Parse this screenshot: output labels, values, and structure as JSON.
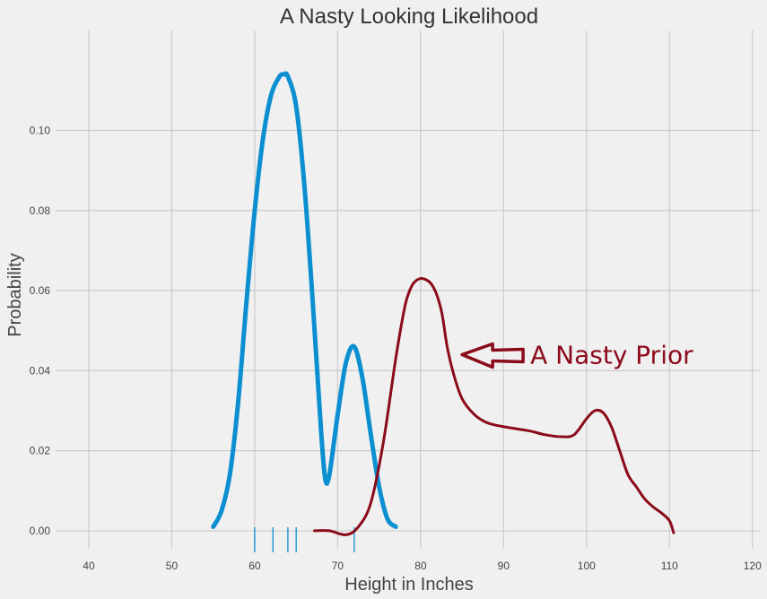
{
  "chart_data": {
    "type": "line",
    "title": "A Nasty Looking Likelihood",
    "xlabel": "Height in Inches",
    "ylabel": "Probability",
    "xlim": [
      36,
      121
    ],
    "ylim": [
      -0.0045,
      0.125
    ],
    "x_ticks": [
      40,
      50,
      60,
      70,
      80,
      90,
      100,
      110,
      120
    ],
    "y_ticks": [
      0.0,
      0.02,
      0.04,
      0.06,
      0.08,
      0.1
    ],
    "x_tick_labels": [
      "40",
      "50",
      "60",
      "70",
      "80",
      "90",
      "100",
      "110",
      "120"
    ],
    "y_tick_labels": [
      "0.00",
      "0.02",
      "0.04",
      "0.06",
      "0.08",
      "0.10"
    ],
    "grid": true,
    "colors": {
      "likelihood": "#0b8fd0",
      "prior": "#8b0a1a",
      "grid": "#cbcbcb",
      "background": "#f0f0f0"
    },
    "series": [
      {
        "x": [
          55,
          56,
          57,
          58,
          59,
          60,
          61,
          62,
          63,
          63.5,
          64,
          65,
          66,
          67,
          68,
          68.5,
          69,
          70,
          71,
          72,
          73,
          74,
          75,
          76,
          77
        ],
        "y": [
          0.001,
          0.005,
          0.014,
          0.032,
          0.057,
          0.08,
          0.098,
          0.109,
          0.1135,
          0.114,
          0.1135,
          0.106,
          0.086,
          0.057,
          0.025,
          0.013,
          0.014,
          0.029,
          0.042,
          0.046,
          0.038,
          0.024,
          0.011,
          0.003,
          0.001
        ]
      },
      {
        "x": [
          67.2,
          69,
          71,
          72.5,
          74,
          75.5,
          77,
          78,
          78.5,
          79.2,
          80.3,
          81.5,
          82.5,
          83.2,
          84,
          85,
          86.5,
          88,
          90,
          93,
          95,
          97,
          98.5,
          100,
          101,
          102,
          103,
          104,
          105,
          106,
          107,
          108,
          109,
          110,
          110.5
        ],
        "y": [
          0.0,
          0.0,
          -0.001,
          0.001,
          0.007,
          0.022,
          0.043,
          0.055,
          0.059,
          0.062,
          0.063,
          0.061,
          0.055,
          0.046,
          0.039,
          0.033,
          0.029,
          0.027,
          0.026,
          0.025,
          0.024,
          0.0235,
          0.024,
          0.028,
          0.03,
          0.0295,
          0.026,
          0.02,
          0.014,
          0.011,
          0.008,
          0.006,
          0.0045,
          0.0025,
          -0.0005
        ]
      }
    ],
    "rug": [
      60,
      62.2,
      64,
      65,
      72
    ],
    "annotations": [
      {
        "text": "A Nasty Prior",
        "points_to": [
          85,
          0.044
        ]
      }
    ]
  }
}
